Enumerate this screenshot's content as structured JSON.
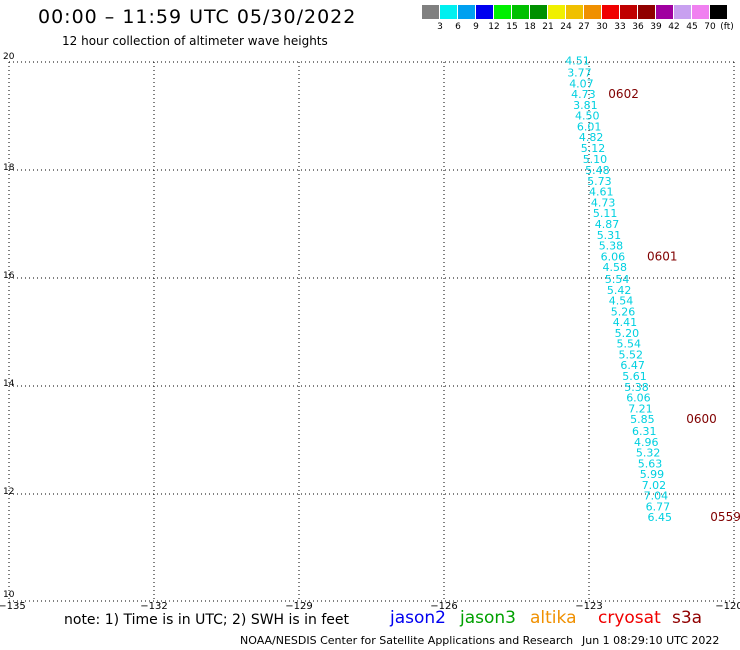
{
  "title": "00:00 – 11:59 UTC 05/30/2022",
  "subtitle": "12 hour collection of altimeter wave heights",
  "legend": {
    "colors": [
      "#808080",
      "#00f0f0",
      "#00a0f0",
      "#0000f0",
      "#00f000",
      "#00c000",
      "#009000",
      "#f0f000",
      "#f0c000",
      "#f09000",
      "#f00000",
      "#c00000",
      "#900000",
      "#a000a0",
      "#c8a0f0",
      "#f080f0",
      "#000000"
    ],
    "ticks": [
      "3",
      "6",
      "9",
      "12",
      "15",
      "18",
      "21",
      "24",
      "27",
      "30",
      "33",
      "36",
      "39",
      "42",
      "45",
      "70",
      "(ft)"
    ]
  },
  "map": {
    "y_ticks": [
      "20",
      "18",
      "16",
      "14",
      "12",
      "10"
    ],
    "x_ticks": [
      "−135",
      "−132",
      "−129",
      "−126",
      "−123",
      "−120"
    ],
    "wave_color": "#00d0e0",
    "time_color": "#800000",
    "wave_heights": [
      {
        "lon": -123.49,
        "lat": 19.95,
        "value": "4.51"
      },
      {
        "lon": -123.45,
        "lat": 19.73,
        "value": "3.77"
      },
      {
        "lon": -123.41,
        "lat": 19.53,
        "value": "4.07"
      },
      {
        "lon": -123.37,
        "lat": 19.33,
        "value": "4.73"
      },
      {
        "lon": -123.33,
        "lat": 19.13,
        "value": "3.81"
      },
      {
        "lon": -123.29,
        "lat": 18.93,
        "value": "4.50"
      },
      {
        "lon": -123.25,
        "lat": 18.73,
        "value": "6.01"
      },
      {
        "lon": -123.21,
        "lat": 18.53,
        "value": "4.82"
      },
      {
        "lon": -123.17,
        "lat": 18.33,
        "value": "5.12"
      },
      {
        "lon": -123.13,
        "lat": 18.13,
        "value": "5.10"
      },
      {
        "lon": -123.08,
        "lat": 17.92,
        "value": "5.48"
      },
      {
        "lon": -123.04,
        "lat": 17.72,
        "value": "5.73"
      },
      {
        "lon": -123.0,
        "lat": 17.52,
        "value": "4.61"
      },
      {
        "lon": -122.96,
        "lat": 17.32,
        "value": "4.73"
      },
      {
        "lon": -122.92,
        "lat": 17.12,
        "value": "5.11"
      },
      {
        "lon": -122.88,
        "lat": 16.92,
        "value": "4.87"
      },
      {
        "lon": -122.84,
        "lat": 16.72,
        "value": "5.31"
      },
      {
        "lon": -122.8,
        "lat": 16.52,
        "value": "5.38"
      },
      {
        "lon": -122.76,
        "lat": 16.32,
        "value": "6.06"
      },
      {
        "lon": -122.72,
        "lat": 16.12,
        "value": "4.58"
      },
      {
        "lon": -122.67,
        "lat": 15.9,
        "value": "5.54"
      },
      {
        "lon": -122.63,
        "lat": 15.7,
        "value": "5.42"
      },
      {
        "lon": -122.59,
        "lat": 15.5,
        "value": "4.54"
      },
      {
        "lon": -122.55,
        "lat": 15.3,
        "value": "5.26"
      },
      {
        "lon": -122.51,
        "lat": 15.1,
        "value": "4.41"
      },
      {
        "lon": -122.47,
        "lat": 14.9,
        "value": "5.20"
      },
      {
        "lon": -122.43,
        "lat": 14.7,
        "value": "5.54"
      },
      {
        "lon": -122.39,
        "lat": 14.5,
        "value": "5.52"
      },
      {
        "lon": -122.35,
        "lat": 14.3,
        "value": "6.47"
      },
      {
        "lon": -122.31,
        "lat": 14.1,
        "value": "5.61"
      },
      {
        "lon": -122.27,
        "lat": 13.9,
        "value": "5.38"
      },
      {
        "lon": -122.23,
        "lat": 13.7,
        "value": "6.06"
      },
      {
        "lon": -122.19,
        "lat": 13.5,
        "value": "7.21"
      },
      {
        "lon": -122.15,
        "lat": 13.3,
        "value": "5.85"
      },
      {
        "lon": -122.11,
        "lat": 13.08,
        "value": "6.31"
      },
      {
        "lon": -122.07,
        "lat": 12.88,
        "value": "4.96"
      },
      {
        "lon": -122.03,
        "lat": 12.68,
        "value": "5.32"
      },
      {
        "lon": -121.99,
        "lat": 12.48,
        "value": "5.63"
      },
      {
        "lon": -121.95,
        "lat": 12.28,
        "value": "5.99"
      },
      {
        "lon": -121.91,
        "lat": 12.08,
        "value": "7.02"
      },
      {
        "lon": -121.87,
        "lat": 11.88,
        "value": "7.04"
      },
      {
        "lon": -121.83,
        "lat": 11.68,
        "value": "6.77"
      },
      {
        "lon": -121.79,
        "lat": 11.48,
        "value": "6.45"
      }
    ],
    "pass_times": [
      {
        "lon": -122.6,
        "lat": 19.33,
        "value": "0602"
      },
      {
        "lon": -121.8,
        "lat": 16.32,
        "value": "0601"
      },
      {
        "lon": -120.99,
        "lat": 13.3,
        "value": "0600"
      },
      {
        "lon": -120.49,
        "lat": 11.48,
        "value": "0559"
      }
    ]
  },
  "note": "note: 1) Time is in UTC; 2) SWH is in feet",
  "satellites": [
    {
      "name": "jason2",
      "color": "#0000f0"
    },
    {
      "name": "jason3",
      "color": "#00a000"
    },
    {
      "name": "altika",
      "color": "#f09000"
    },
    {
      "name": "cryosat",
      "color": "#f00000"
    },
    {
      "name": "s3a",
      "color": "#900000"
    }
  ],
  "footer": "NOAA/NESDIS Center for Satellite Applications and Research",
  "footer_time": "Jun  1 08:29:10 UTC 2022"
}
